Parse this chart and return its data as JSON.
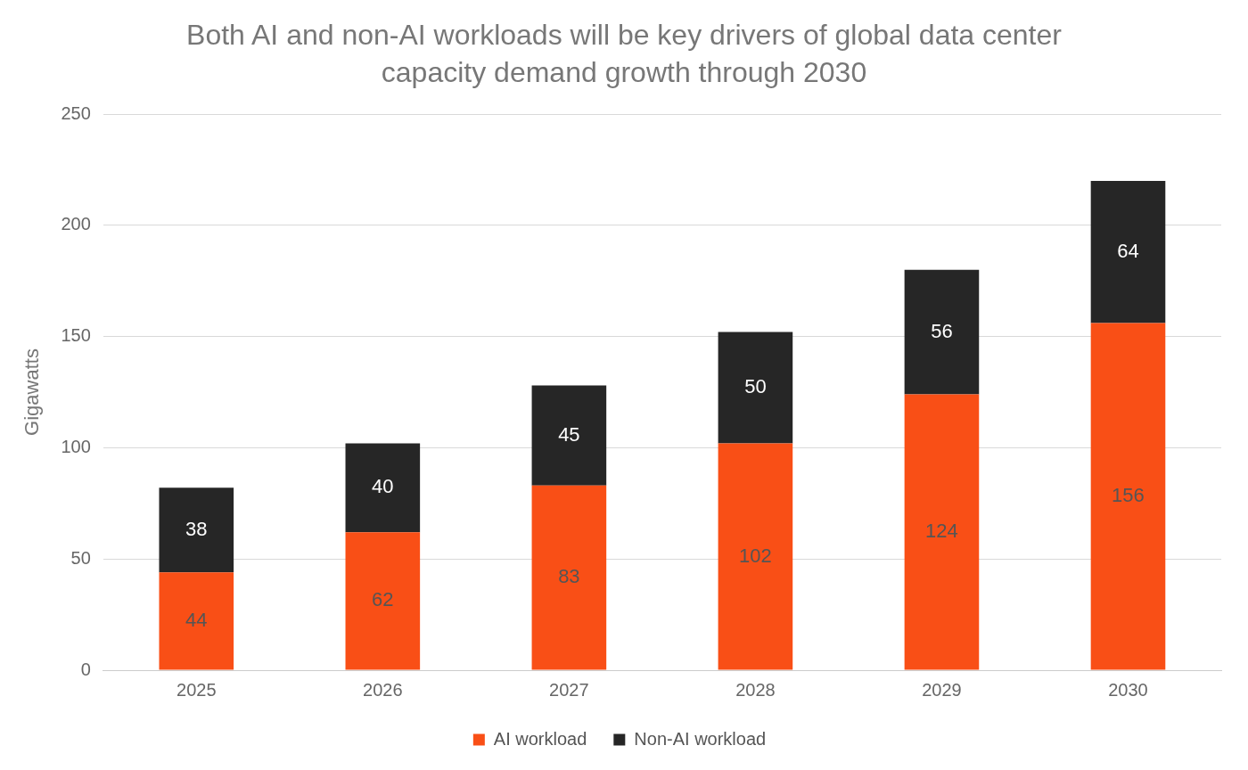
{
  "chart_data": {
    "type": "bar",
    "title": "Both AI and non-AI workloads will be key drivers of global data center capacity demand growth through 2030",
    "ylabel": "Gigawatts",
    "categories": [
      "2025",
      "2026",
      "2027",
      "2028",
      "2029",
      "2030"
    ],
    "series": [
      {
        "name": "AI workload",
        "color": "#f94f16",
        "values": [
          44,
          62,
          83,
          102,
          124,
          156
        ]
      },
      {
        "name": "Non-AI workload",
        "color": "#262626",
        "values": [
          38,
          40,
          45,
          50,
          56,
          64
        ]
      }
    ],
    "stacked": true,
    "ylim": [
      0,
      250
    ],
    "yticks": [
      0,
      50,
      100,
      150,
      200,
      250
    ],
    "grid": "y",
    "legend": "bottom",
    "data_labels": true
  }
}
